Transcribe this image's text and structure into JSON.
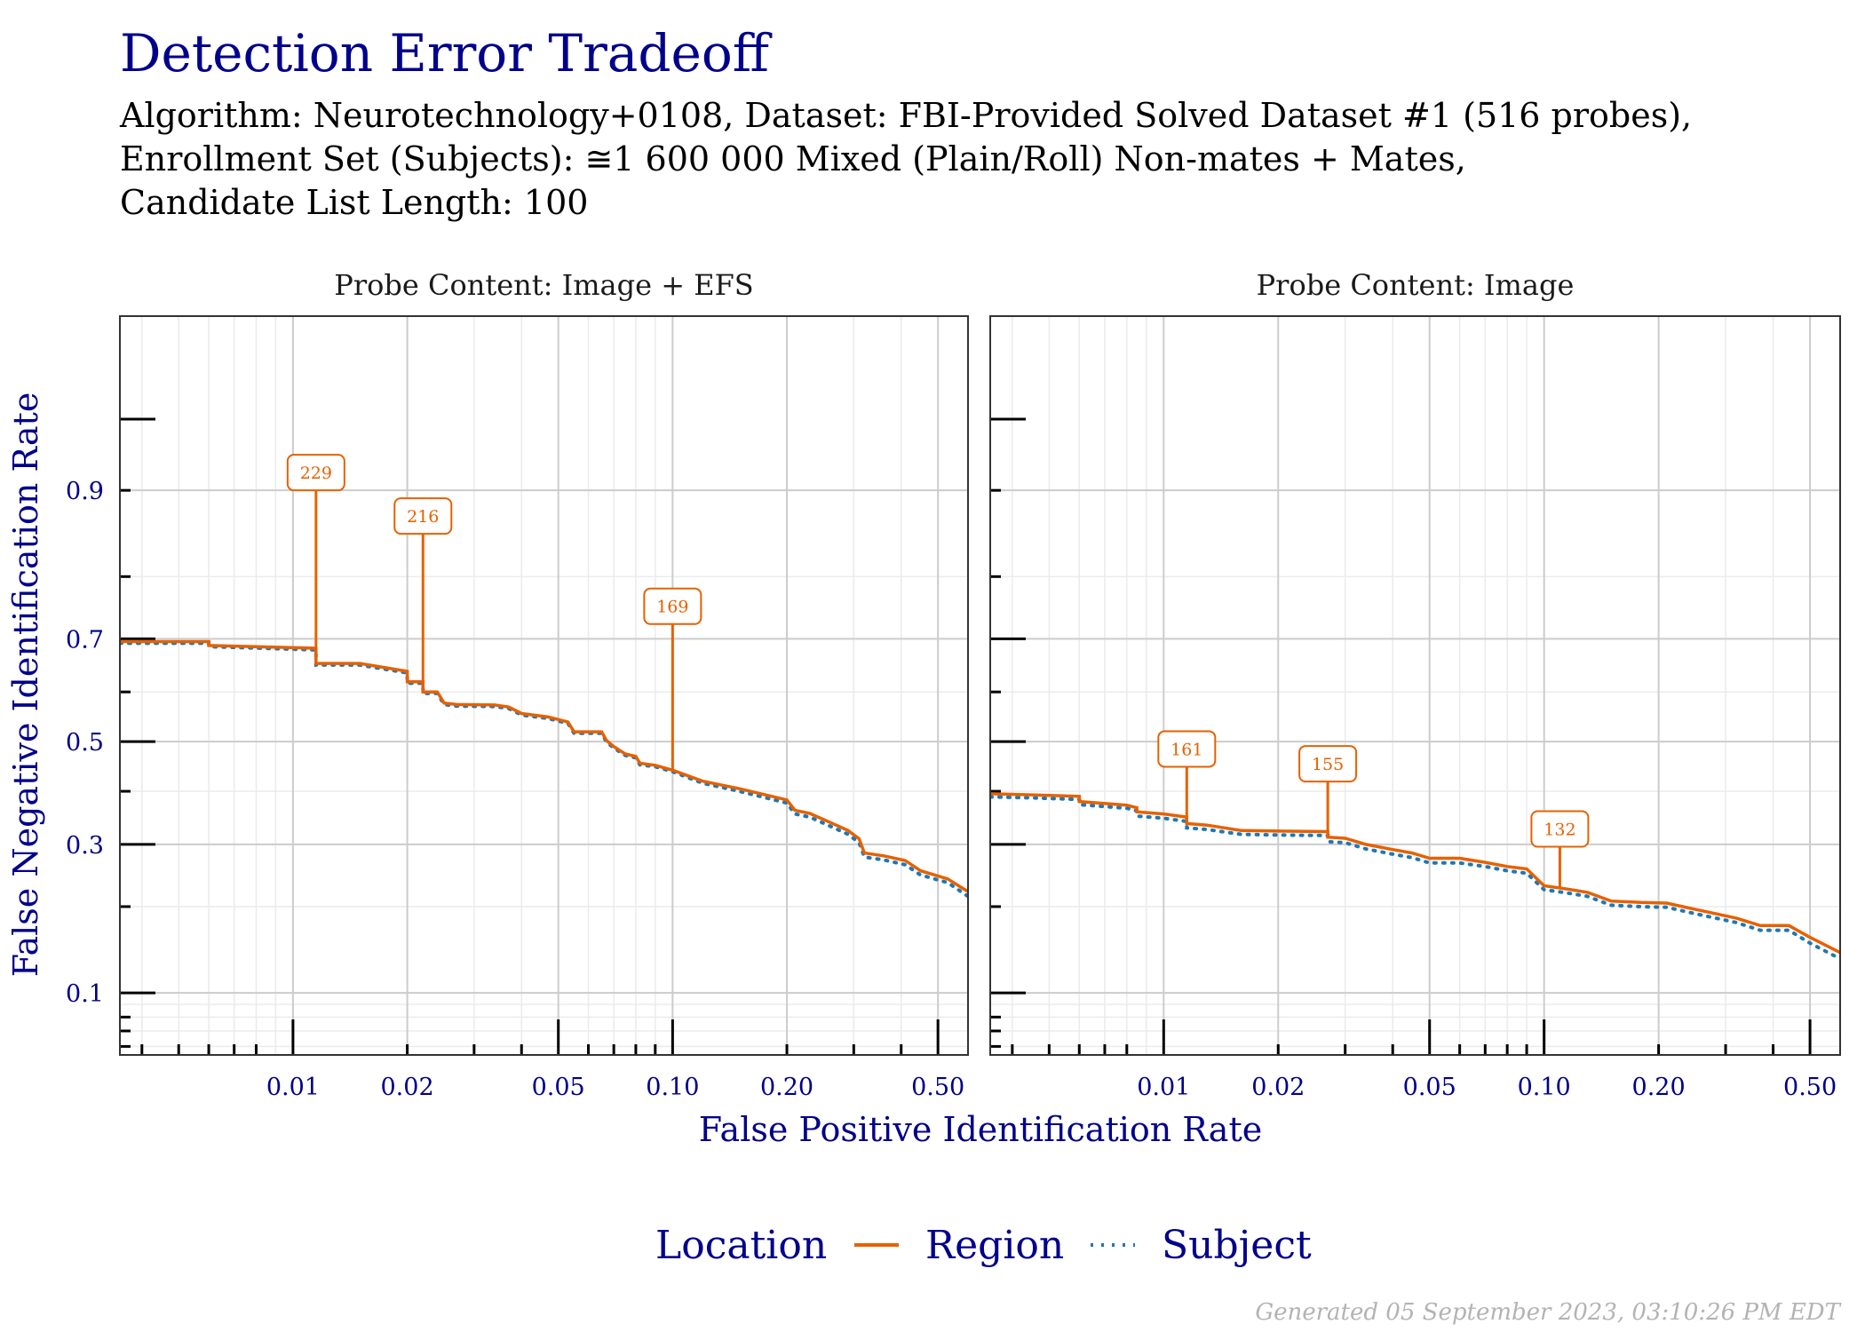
{
  "title": "Detection Error Tradeoff",
  "subtitle_lines": [
    "Algorithm: Neurotechnology+0108, Dataset: FBI-Provided Solved Dataset #1 (516 probes),",
    "Enrollment Set (Subjects): ≅1 600 000 Mixed (Plain/Roll) Non-mates + Mates,",
    "Candidate List Length: 100"
  ],
  "caption": "Generated 05 September 2023, 03:10:26 PM EDT",
  "colors": {
    "region": "#e66101",
    "subject": "#1f78b4",
    "text": "#00008b",
    "grid_major": "#cccccc",
    "grid_minor": "#ebebeb"
  },
  "chart_data": {
    "type": "line",
    "xlabel": "False Positive Identification Rate",
    "ylabel": "False Negative Identification Rate",
    "x_scale": "log",
    "y_scale": "probit",
    "xlim": [
      0.0035,
      0.6
    ],
    "ylim": [
      0.055,
      0.985
    ],
    "x_ticks": [
      {
        "value": 0.01,
        "label": "0.01"
      },
      {
        "value": 0.02,
        "label": "0.02"
      },
      {
        "value": 0.05,
        "label": "0.05"
      },
      {
        "value": 0.1,
        "label": "0.10"
      },
      {
        "value": 0.2,
        "label": "0.20"
      },
      {
        "value": 0.5,
        "label": "0.50"
      }
    ],
    "y_ticks": [
      {
        "value": 0.1,
        "label": "0.1"
      },
      {
        "value": 0.3,
        "label": "0.3"
      },
      {
        "value": 0.5,
        "label": "0.5"
      },
      {
        "value": 0.7,
        "label": "0.7"
      },
      {
        "value": 0.9,
        "label": "0.9"
      }
    ],
    "legend": {
      "title": "Location",
      "position": "bottom",
      "entries": [
        "Region",
        "Subject"
      ]
    },
    "panels": [
      {
        "strip": "Probe Content: Image + EFS",
        "series": [
          {
            "name": "Region",
            "style": "solid",
            "points": [
              [
                0.0035,
                0.695
              ],
              [
                0.006,
                0.695
              ],
              [
                0.006,
                0.688
              ],
              [
                0.0115,
                0.683
              ],
              [
                0.0115,
                0.655
              ],
              [
                0.015,
                0.655
              ],
              [
                0.02,
                0.64
              ],
              [
                0.02,
                0.62
              ],
              [
                0.022,
                0.62
              ],
              [
                0.022,
                0.6
              ],
              [
                0.024,
                0.6
              ],
              [
                0.025,
                0.578
              ],
              [
                0.027,
                0.575
              ],
              [
                0.034,
                0.574
              ],
              [
                0.037,
                0.57
              ],
              [
                0.04,
                0.557
              ],
              [
                0.047,
                0.55
              ],
              [
                0.053,
                0.54
              ],
              [
                0.055,
                0.52
              ],
              [
                0.065,
                0.52
              ],
              [
                0.067,
                0.502
              ],
              [
                0.07,
                0.49
              ],
              [
                0.075,
                0.475
              ],
              [
                0.08,
                0.47
              ],
              [
                0.082,
                0.456
              ],
              [
                0.09,
                0.452
              ],
              [
                0.1,
                0.442
              ],
              [
                0.12,
                0.42
              ],
              [
                0.15,
                0.405
              ],
              [
                0.2,
                0.383
              ],
              [
                0.21,
                0.363
              ],
              [
                0.23,
                0.357
              ],
              [
                0.26,
                0.34
              ],
              [
                0.29,
                0.325
              ],
              [
                0.31,
                0.31
              ],
              [
                0.32,
                0.285
              ],
              [
                0.36,
                0.28
              ],
              [
                0.41,
                0.272
              ],
              [
                0.45,
                0.255
              ],
              [
                0.53,
                0.242
              ],
              [
                0.6,
                0.222
              ]
            ]
          },
          {
            "name": "Subject",
            "style": "dotted",
            "points": [
              [
                0.0035,
                0.692
              ],
              [
                0.006,
                0.692
              ],
              [
                0.006,
                0.686
              ],
              [
                0.0115,
                0.68
              ],
              [
                0.0115,
                0.652
              ],
              [
                0.015,
                0.652
              ],
              [
                0.02,
                0.637
              ],
              [
                0.02,
                0.617
              ],
              [
                0.022,
                0.617
              ],
              [
                0.022,
                0.597
              ],
              [
                0.024,
                0.597
              ],
              [
                0.025,
                0.575
              ],
              [
                0.027,
                0.572
              ],
              [
                0.034,
                0.571
              ],
              [
                0.037,
                0.567
              ],
              [
                0.04,
                0.554
              ],
              [
                0.047,
                0.547
              ],
              [
                0.053,
                0.537
              ],
              [
                0.055,
                0.517
              ],
              [
                0.065,
                0.517
              ],
              [
                0.067,
                0.499
              ],
              [
                0.07,
                0.487
              ],
              [
                0.075,
                0.472
              ],
              [
                0.08,
                0.467
              ],
              [
                0.082,
                0.453
              ],
              [
                0.09,
                0.449
              ],
              [
                0.1,
                0.439
              ],
              [
                0.12,
                0.416
              ],
              [
                0.15,
                0.4
              ],
              [
                0.2,
                0.377
              ],
              [
                0.21,
                0.356
              ],
              [
                0.23,
                0.35
              ],
              [
                0.26,
                0.333
              ],
              [
                0.29,
                0.318
              ],
              [
                0.31,
                0.303
              ],
              [
                0.32,
                0.278
              ],
              [
                0.36,
                0.273
              ],
              [
                0.41,
                0.265
              ],
              [
                0.45,
                0.248
              ],
              [
                0.53,
                0.236
              ],
              [
                0.6,
                0.215
              ]
            ]
          }
        ],
        "annotations": [
          {
            "label": "229",
            "x": 0.0115,
            "y": 0.655,
            "top": 0.915
          },
          {
            "label": "216",
            "x": 0.022,
            "y": 0.6,
            "top": 0.875
          },
          {
            "label": "169",
            "x": 0.1,
            "y": 0.442,
            "top": 0.755
          }
        ]
      },
      {
        "strip": "Probe Content: Image",
        "series": [
          {
            "name": "Region",
            "style": "solid",
            "points": [
              [
                0.0035,
                0.395
              ],
              [
                0.0045,
                0.393
              ],
              [
                0.006,
                0.39
              ],
              [
                0.006,
                0.38
              ],
              [
                0.008,
                0.373
              ],
              [
                0.0085,
                0.368
              ],
              [
                0.0085,
                0.36
              ],
              [
                0.01,
                0.356
              ],
              [
                0.0115,
                0.35
              ],
              [
                0.0115,
                0.338
              ],
              [
                0.013,
                0.335
              ],
              [
                0.016,
                0.325
              ],
              [
                0.02,
                0.324
              ],
              [
                0.027,
                0.323
              ],
              [
                0.027,
                0.313
              ],
              [
                0.03,
                0.311
              ],
              [
                0.034,
                0.3
              ],
              [
                0.04,
                0.291
              ],
              [
                0.045,
                0.285
              ],
              [
                0.05,
                0.276
              ],
              [
                0.06,
                0.276
              ],
              [
                0.07,
                0.269
              ],
              [
                0.08,
                0.262
              ],
              [
                0.09,
                0.258
              ],
              [
                0.1,
                0.231
              ],
              [
                0.115,
                0.226
              ],
              [
                0.13,
                0.221
              ],
              [
                0.15,
                0.208
              ],
              [
                0.18,
                0.206
              ],
              [
                0.21,
                0.205
              ],
              [
                0.25,
                0.196
              ],
              [
                0.32,
                0.184
              ],
              [
                0.37,
                0.174
              ],
              [
                0.44,
                0.174
              ],
              [
                0.5,
                0.159
              ],
              [
                0.6,
                0.141
              ]
            ]
          },
          {
            "name": "Subject",
            "style": "dotted",
            "points": [
              [
                0.0035,
                0.389
              ],
              [
                0.0045,
                0.387
              ],
              [
                0.006,
                0.384
              ],
              [
                0.006,
                0.374
              ],
              [
                0.008,
                0.367
              ],
              [
                0.0085,
                0.362
              ],
              [
                0.0085,
                0.352
              ],
              [
                0.01,
                0.348
              ],
              [
                0.0115,
                0.342
              ],
              [
                0.0115,
                0.33
              ],
              [
                0.013,
                0.327
              ],
              [
                0.016,
                0.318
              ],
              [
                0.02,
                0.317
              ],
              [
                0.027,
                0.316
              ],
              [
                0.027,
                0.305
              ],
              [
                0.03,
                0.303
              ],
              [
                0.034,
                0.292
              ],
              [
                0.04,
                0.283
              ],
              [
                0.045,
                0.277
              ],
              [
                0.05,
                0.268
              ],
              [
                0.06,
                0.268
              ],
              [
                0.07,
                0.262
              ],
              [
                0.08,
                0.255
              ],
              [
                0.09,
                0.251
              ],
              [
                0.1,
                0.225
              ],
              [
                0.115,
                0.22
              ],
              [
                0.13,
                0.215
              ],
              [
                0.15,
                0.202
              ],
              [
                0.18,
                0.2
              ],
              [
                0.21,
                0.199
              ],
              [
                0.25,
                0.19
              ],
              [
                0.32,
                0.178
              ],
              [
                0.37,
                0.168
              ],
              [
                0.44,
                0.168
              ],
              [
                0.5,
                0.152
              ],
              [
                0.6,
                0.134
              ]
            ]
          }
        ],
        "annotations": [
          {
            "label": "161",
            "x": 0.0115,
            "y": 0.338,
            "top": 0.485
          },
          {
            "label": "155",
            "x": 0.027,
            "y": 0.313,
            "top": 0.455
          },
          {
            "label": "132",
            "x": 0.11,
            "y": 0.226,
            "top": 0.328
          }
        ]
      }
    ]
  }
}
